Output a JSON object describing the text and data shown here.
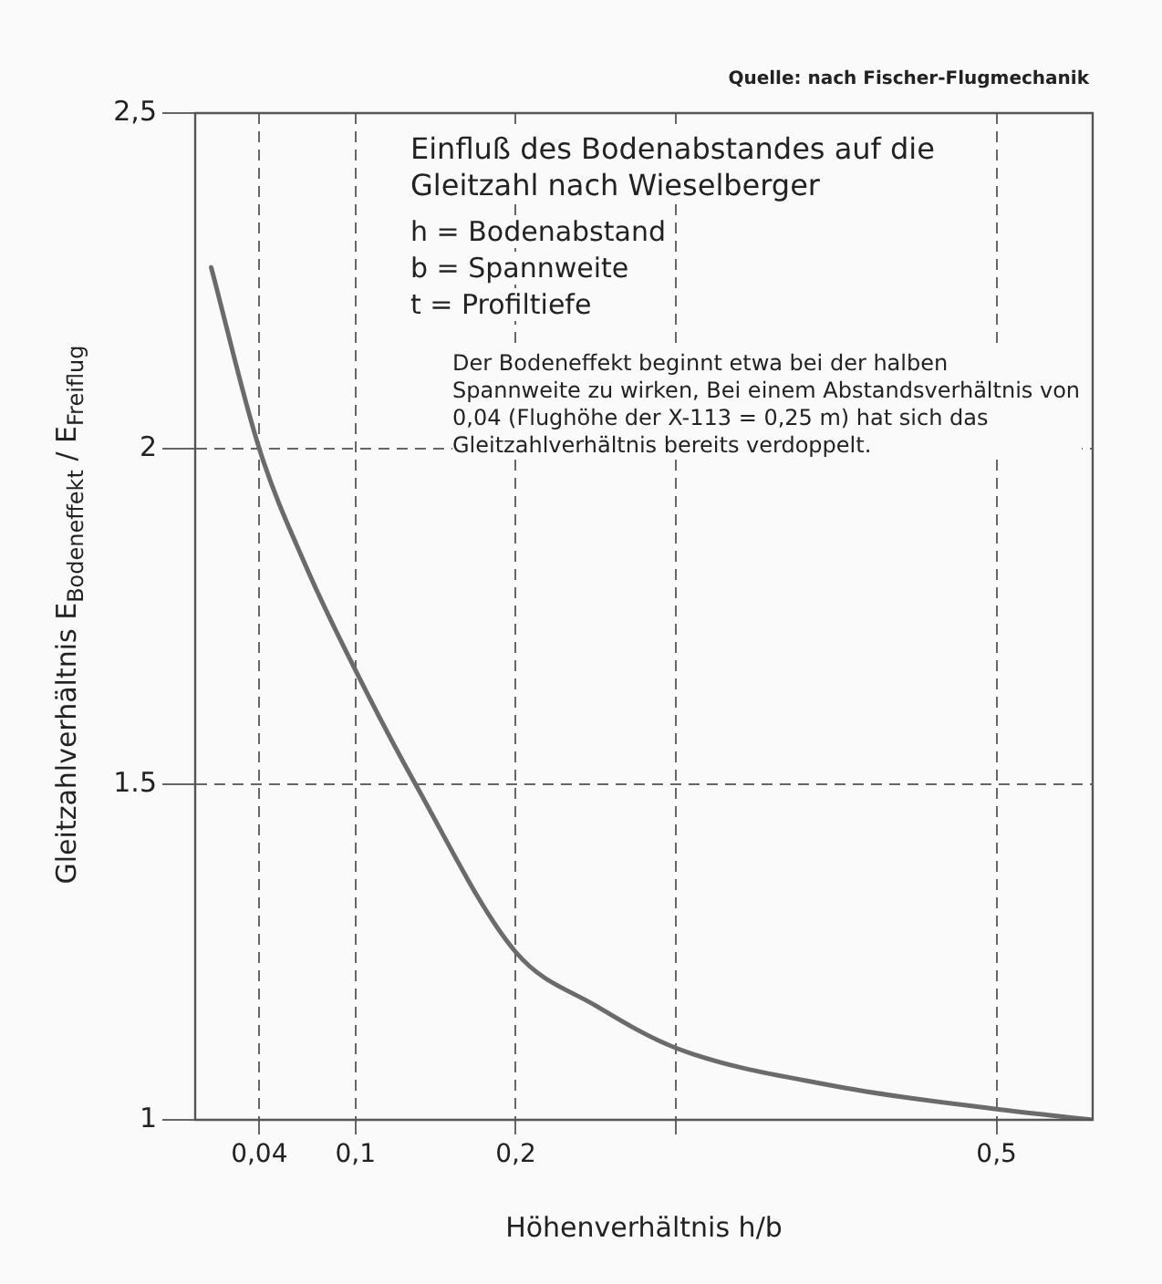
{
  "chart_data": {
    "type": "line",
    "title": "Einfluß des Bodenabstandes auf die Gleitzahl nach Wieselberger",
    "xlabel": "Höhenverhältnis  h/b",
    "ylabel": "Gleitzahlverhältnis  E$_{Bodeneffekt}$ / E$_{Freiflug}$",
    "x": [
      0.01,
      0.04,
      0.07,
      0.1,
      0.1375,
      0.2,
      0.25,
      0.3,
      0.4,
      0.5,
      0.56
    ],
    "series": [
      {
        "color": "#6b6b6b",
        "values": [
          2.27,
          2.0,
          1.82,
          1.67,
          1.5,
          1.25,
          1.17,
          1.107,
          1.05,
          1.016,
          1.0
        ]
      }
    ],
    "xlim": [
      0,
      0.56
    ],
    "ylim": [
      1,
      2.5
    ],
    "xticks": [
      {
        "value": 0.04,
        "label": "0,04"
      },
      {
        "value": 0.1,
        "label": "0,1"
      },
      {
        "value": 0.2,
        "label": "0,2"
      },
      {
        "value": 0.3,
        "label": null
      },
      {
        "value": 0.5,
        "label": "0,5"
      }
    ],
    "yticks": [
      1,
      {
        "value": 1.5,
        "label": "1.5"
      },
      2,
      {
        "value": 2.5,
        "label": "2,5"
      }
    ],
    "grid": true,
    "marker": "none",
    "line_style": "solid",
    "legend": false,
    "annotations": [
      "Quelle: nach Fischer-Flugmechanik",
      "h = Bodenabstand",
      "b = Spannweite",
      "t = Profiltiefe",
      "Der Bodeneffekt beginnt etwa bei der halben Spannweite zu wirken, Bei einem Abstandsverhältnis von 0,04 (Flughöhe der X-113 = 0,25 m) hat sich das Gleitzahlverhältnis bereits verdoppelt."
    ]
  }
}
